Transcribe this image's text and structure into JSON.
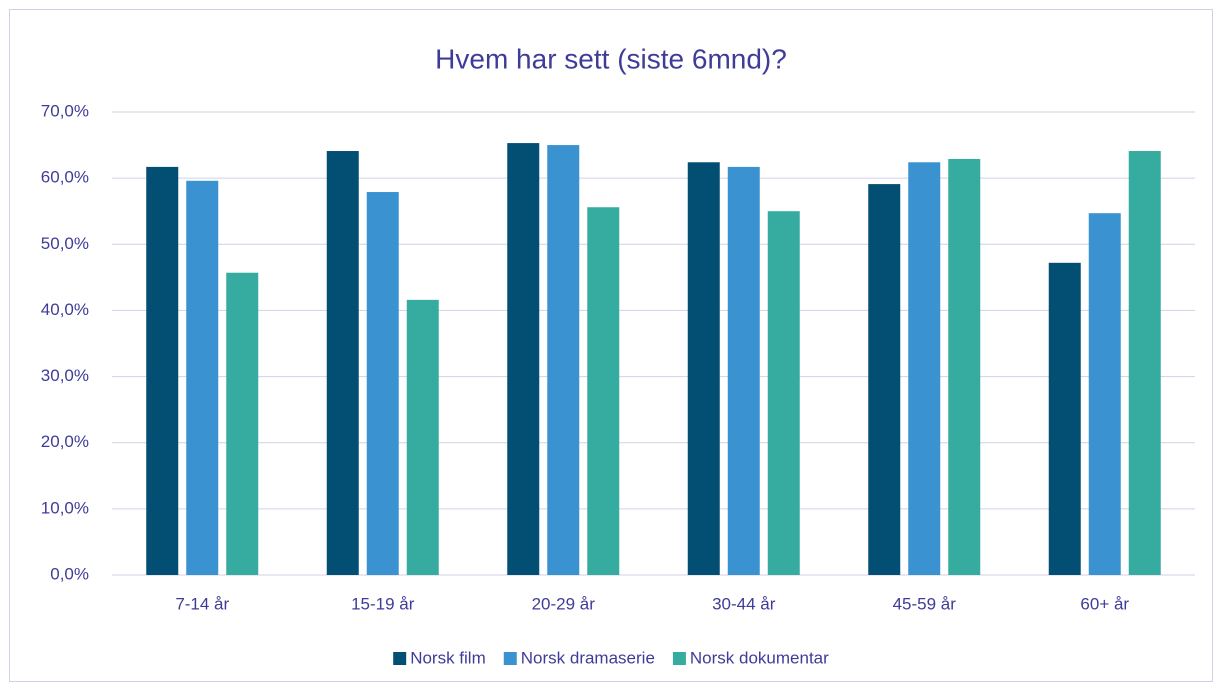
{
  "chart_data": {
    "type": "bar",
    "title": "Hvem har sett (siste 6mnd)?",
    "categories": [
      "7-14 år",
      "15-19 år",
      "20-29 år",
      "30-44 år",
      "45-59 år",
      "60+ år"
    ],
    "series": [
      {
        "name": "Norsk film",
        "color": "#034e73",
        "values": [
          61.7,
          64.1,
          65.3,
          62.4,
          59.1,
          47.2
        ]
      },
      {
        "name": "Norsk dramaserie",
        "color": "#3a93d0",
        "values": [
          59.6,
          57.9,
          65.0,
          61.7,
          62.4,
          54.7
        ]
      },
      {
        "name": "Norsk dokumentar",
        "color": "#36ab9f",
        "values": [
          45.7,
          41.6,
          55.6,
          55.0,
          62.9,
          64.1
        ]
      }
    ],
    "ylim": [
      0,
      70
    ],
    "yticks": [
      {
        "value": 0,
        "label": "0,0%"
      },
      {
        "value": 10,
        "label": "10,0%"
      },
      {
        "value": 20,
        "label": "20,0%"
      },
      {
        "value": 30,
        "label": "30,0%"
      },
      {
        "value": 40,
        "label": "40,0%"
      },
      {
        "value": 50,
        "label": "50,0%"
      },
      {
        "value": 60,
        "label": "60,0%"
      },
      {
        "value": 70,
        "label": "70,0%"
      }
    ],
    "grid": true,
    "legend": "bottom"
  }
}
